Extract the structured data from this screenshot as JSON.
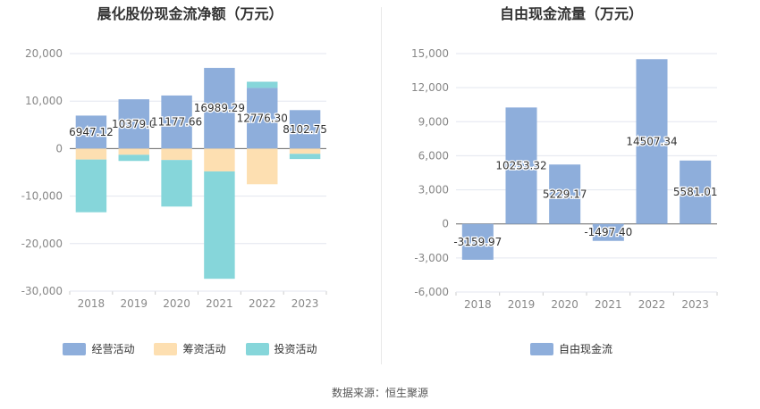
{
  "source_note": "数据来源：恒生聚源",
  "chart_data": [
    {
      "type": "bar",
      "stacked": true,
      "title": "晨化股份现金流净额（万元）",
      "categories": [
        "2018",
        "2019",
        "2020",
        "2021",
        "2022",
        "2023"
      ],
      "ylim": [
        -30000,
        20000
      ],
      "yticks": [
        20000,
        10000,
        0,
        -10000,
        -20000,
        -30000
      ],
      "ytick_labels": [
        "20,000",
        "10,000",
        "0",
        "-10,000",
        "-20,000",
        "-30,000"
      ],
      "grid": true,
      "legend_position": "bottom",
      "series": [
        {
          "name": "经营活动",
          "color": "#8eaedb",
          "values": [
            6947.12,
            10379.0,
            11177.66,
            16989.29,
            12776.3,
            8102.75
          ]
        },
        {
          "name": "筹资活动",
          "color": "#fddfb1",
          "values": [
            -2300,
            -1300,
            -2400,
            -4800,
            -7500,
            -1100
          ]
        },
        {
          "name": "投资活动",
          "color": "#86d6da",
          "values": [
            -11100,
            -1300,
            -9800,
            -22600,
            1300,
            -1100
          ]
        }
      ],
      "data_labels": [
        "6947.12",
        "10379.0",
        "11177.66",
        "16989.29",
        "12776.30",
        "8102.75"
      ]
    },
    {
      "type": "bar",
      "title": "自由现金流量（万元）",
      "categories": [
        "2018",
        "2019",
        "2020",
        "2021",
        "2022",
        "2023"
      ],
      "ylim": [
        -6000,
        15000
      ],
      "yticks": [
        15000,
        12000,
        9000,
        6000,
        3000,
        0,
        -3000,
        -6000
      ],
      "ytick_labels": [
        "15,000",
        "12,000",
        "9,000",
        "6,000",
        "3,000",
        "0",
        "-3,000",
        "-6,000"
      ],
      "grid": true,
      "legend_position": "bottom",
      "series": [
        {
          "name": "自由现金流",
          "color": "#8eaedb",
          "values": [
            -3159.97,
            10253.32,
            5229.17,
            -1497.4,
            14507.34,
            5581.01
          ]
        }
      ],
      "data_labels": [
        "-3159.97",
        "10253.32",
        "5229.17",
        "-1497.40",
        "14507.34",
        "5581.01"
      ]
    }
  ]
}
